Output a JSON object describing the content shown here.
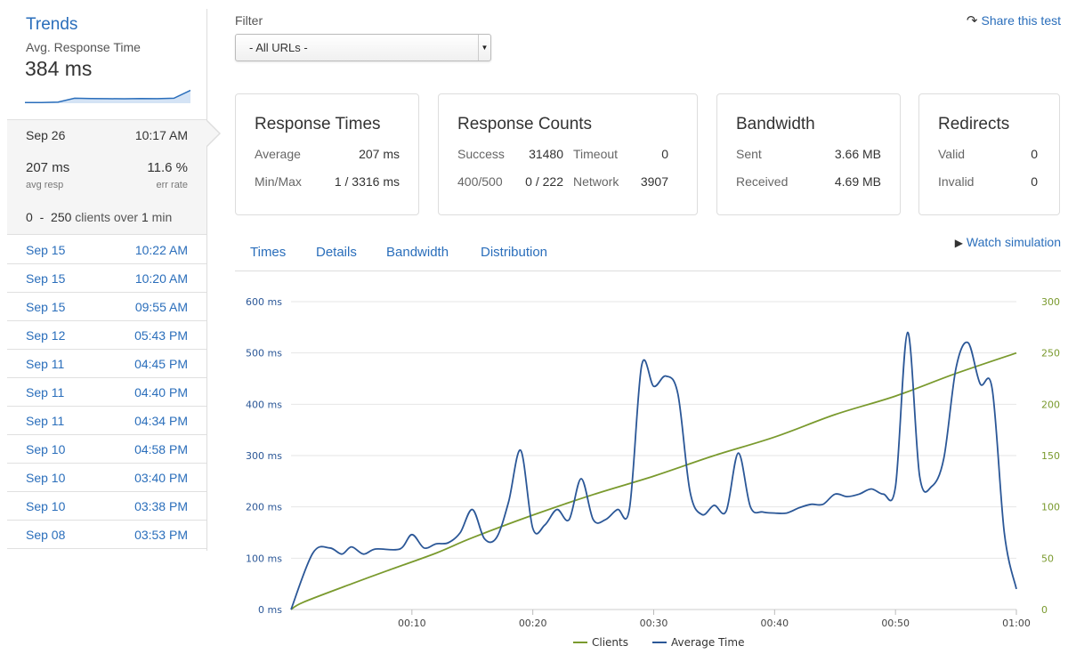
{
  "sidebar": {
    "title": "Trends",
    "avg_label": "Avg. Response Time",
    "avg_value": "384 ms",
    "sparkline": [
      0.05,
      0.05,
      0.08,
      0.35,
      0.33,
      0.32,
      0.31,
      0.33,
      0.32,
      0.35,
      0.9
    ],
    "active": {
      "date": "Sep 26",
      "time": "10:17 AM",
      "avg_resp": "207 ms",
      "avg_resp_label": "avg resp",
      "err_rate": "11.6 %",
      "err_rate_label": "err rate",
      "clients_from": "0",
      "clients_dash": "-",
      "clients_to": "250",
      "clients_text": "clients over",
      "duration": "1",
      "duration_unit": "min"
    },
    "runs": [
      {
        "date": "Sep 15",
        "time": "10:22 AM"
      },
      {
        "date": "Sep 15",
        "time": "10:20 AM"
      },
      {
        "date": "Sep 15",
        "time": "09:55 AM"
      },
      {
        "date": "Sep 12",
        "time": "05:43 PM"
      },
      {
        "date": "Sep 11",
        "time": "04:45 PM"
      },
      {
        "date": "Sep 11",
        "time": "04:40 PM"
      },
      {
        "date": "Sep 11",
        "time": "04:34 PM"
      },
      {
        "date": "Sep 10",
        "time": "04:58 PM"
      },
      {
        "date": "Sep 10",
        "time": "03:40 PM"
      },
      {
        "date": "Sep 10",
        "time": "03:38 PM"
      },
      {
        "date": "Sep 08",
        "time": "03:53 PM"
      }
    ]
  },
  "filter": {
    "label": "Filter",
    "value": "- All URLs -"
  },
  "share": {
    "label": "Share this test",
    "icon": "share-icon"
  },
  "cards": {
    "response_times": {
      "title": "Response Times",
      "average_label": "Average",
      "average_value": "207 ms",
      "minmax_label": "Min/Max",
      "minmax_value": "1 / 3316 ms"
    },
    "response_counts": {
      "title": "Response Counts",
      "success_label": "Success",
      "success_value": "31480",
      "timeout_label": "Timeout",
      "timeout_value": "0",
      "err_label": "400/500",
      "err_value": "0 / 222",
      "network_label": "Network",
      "network_value": "3907"
    },
    "bandwidth": {
      "title": "Bandwidth",
      "sent_label": "Sent",
      "sent_value": "3.66 MB",
      "received_label": "Received",
      "received_value": "4.69 MB"
    },
    "redirects": {
      "title": "Redirects",
      "valid_label": "Valid",
      "valid_value": "0",
      "invalid_label": "Invalid",
      "invalid_value": "0"
    }
  },
  "tabs": [
    "Times",
    "Details",
    "Bandwidth",
    "Distribution"
  ],
  "watch": {
    "label": "Watch simulation",
    "icon": "play-icon"
  },
  "colors": {
    "link": "#2a6ebb",
    "clients": "#7a9a2e",
    "avg_time": "#2b5797"
  },
  "chart_data": {
    "type": "line",
    "x_ticks": [
      "00:10",
      "00:20",
      "00:30",
      "00:40",
      "00:50",
      "01:00"
    ],
    "x_range_seconds": [
      0,
      60
    ],
    "y_left": {
      "ticks": [
        "0 ms",
        "100 ms",
        "200 ms",
        "300 ms",
        "400 ms",
        "500 ms",
        "600 ms"
      ],
      "range": [
        0,
        600
      ],
      "unit": "ms"
    },
    "y_right": {
      "ticks": [
        "0",
        "50",
        "100",
        "150",
        "200",
        "250",
        "300"
      ],
      "range": [
        0,
        300
      ]
    },
    "grid": true,
    "legend_position": "bottom",
    "series": [
      {
        "name": "Clients",
        "axis": "right",
        "color": "#7a9a2e",
        "points": [
          [
            0,
            0
          ],
          [
            1,
            7
          ],
          [
            5,
            25
          ],
          [
            8,
            38
          ],
          [
            12,
            55
          ],
          [
            15,
            70
          ],
          [
            20,
            92
          ],
          [
            25,
            112
          ],
          [
            30,
            130
          ],
          [
            35,
            150
          ],
          [
            40,
            168
          ],
          [
            45,
            190
          ],
          [
            50,
            208
          ],
          [
            55,
            230
          ],
          [
            60,
            250
          ]
        ]
      },
      {
        "name": "Average Time",
        "axis": "left",
        "color": "#2b5797",
        "points": [
          [
            0,
            0
          ],
          [
            1.8,
            110
          ],
          [
            3.2,
            120
          ],
          [
            4.2,
            108
          ],
          [
            5,
            122
          ],
          [
            6,
            108
          ],
          [
            7,
            118
          ],
          [
            9,
            118
          ],
          [
            10,
            146
          ],
          [
            11,
            120
          ],
          [
            12,
            128
          ],
          [
            13,
            130
          ],
          [
            14,
            150
          ],
          [
            15,
            195
          ],
          [
            16,
            138
          ],
          [
            17,
            140
          ],
          [
            18,
            210
          ],
          [
            19,
            310
          ],
          [
            20,
            158
          ],
          [
            21,
            165
          ],
          [
            22,
            195
          ],
          [
            23,
            175
          ],
          [
            24,
            255
          ],
          [
            25,
            175
          ],
          [
            26,
            175
          ],
          [
            27,
            195
          ],
          [
            28,
            197
          ],
          [
            29,
            475
          ],
          [
            30,
            435
          ],
          [
            31,
            455
          ],
          [
            32,
            420
          ],
          [
            33,
            230
          ],
          [
            34,
            185
          ],
          [
            35,
            203
          ],
          [
            36,
            192
          ],
          [
            37,
            305
          ],
          [
            38,
            200
          ],
          [
            39,
            190
          ],
          [
            40,
            188
          ],
          [
            41,
            188
          ],
          [
            42,
            198
          ],
          [
            43,
            205
          ],
          [
            44,
            205
          ],
          [
            45,
            225
          ],
          [
            46,
            220
          ],
          [
            47,
            225
          ],
          [
            48,
            235
          ],
          [
            49,
            225
          ],
          [
            50,
            240
          ],
          [
            51,
            540
          ],
          [
            52,
            260
          ],
          [
            53,
            240
          ],
          [
            54,
            295
          ],
          [
            55,
            470
          ],
          [
            56,
            520
          ],
          [
            57,
            440
          ],
          [
            58,
            430
          ],
          [
            59,
            150
          ],
          [
            60,
            40
          ]
        ]
      }
    ]
  }
}
